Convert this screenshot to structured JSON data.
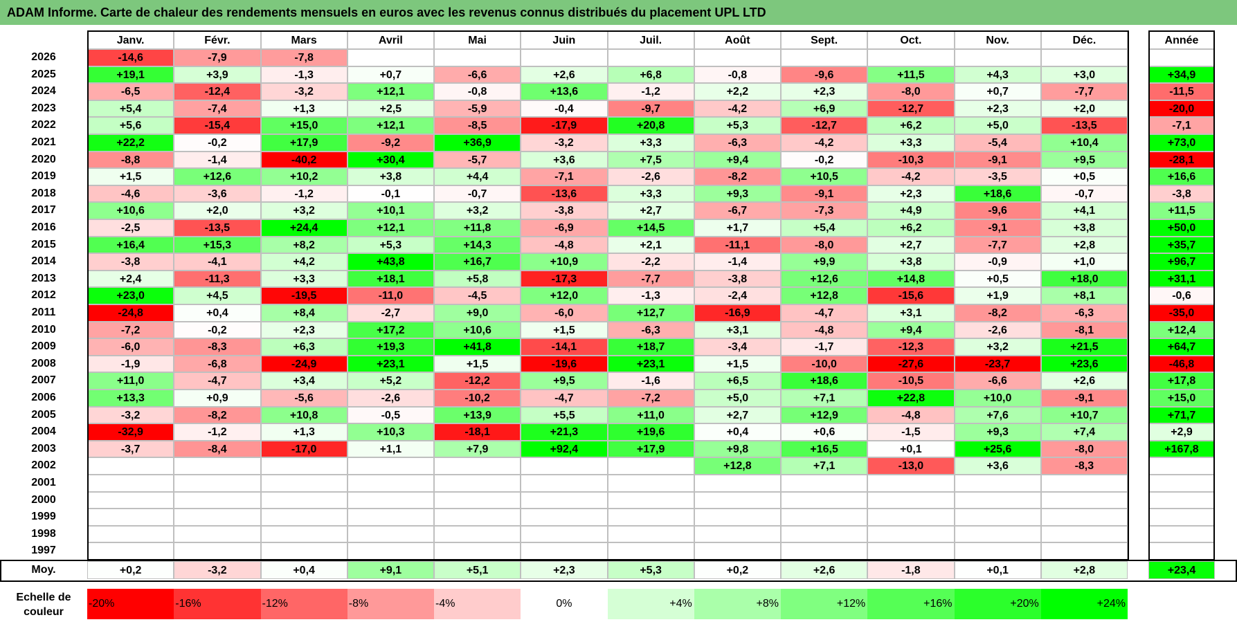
{
  "title": "ADAM Informe. Carte de chaleur des rendements mensuels en euros avec les revenus connus distribués du placement UPL LTD",
  "chart_data": {
    "type": "heatmap",
    "title": "ADAM Informe. Carte de chaleur des rendements mensuels en euros avec les revenus connus distribués du placement UPL LTD",
    "months": [
      "Janv.",
      "Févr.",
      "Mars",
      "Avril",
      "Mai",
      "Juin",
      "Juil.",
      "Août",
      "Sept.",
      "Oct.",
      "Nov.",
      "Déc."
    ],
    "year_header": "Année",
    "rows": [
      {
        "year": "2026",
        "values": [
          "-14,6",
          "-7,9",
          "-7,8",
          "",
          "",
          "",
          "",
          "",
          "",
          "",
          "",
          ""
        ],
        "annual": ""
      },
      {
        "year": "2025",
        "values": [
          "+19,1",
          "+3,9",
          "-1,3",
          "+0,7",
          "-6,6",
          "+2,6",
          "+6,8",
          "-0,8",
          "-9,6",
          "+11,5",
          "+4,3",
          "+3,0"
        ],
        "annual": "+34,9"
      },
      {
        "year": "2024",
        "values": [
          "-6,5",
          "-12,4",
          "-3,2",
          "+12,1",
          "-0,8",
          "+13,6",
          "-1,2",
          "+2,2",
          "+2,3",
          "-8,0",
          "+0,7",
          "-7,7"
        ],
        "annual": "-11,5"
      },
      {
        "year": "2023",
        "values": [
          "+5,4",
          "-7,4",
          "+1,3",
          "+2,5",
          "-5,9",
          "-0,4",
          "-9,7",
          "-4,2",
          "+6,9",
          "-12,7",
          "+2,3",
          "+2,0"
        ],
        "annual": "-20,0"
      },
      {
        "year": "2022",
        "values": [
          "+5,6",
          "-15,4",
          "+15,0",
          "+12,1",
          "-8,5",
          "-17,9",
          "+20,8",
          "+5,3",
          "-12,7",
          "+6,2",
          "+5,0",
          "-13,5"
        ],
        "annual": "-7,1"
      },
      {
        "year": "2021",
        "values": [
          "+22,2",
          "-0,2",
          "+17,9",
          "-9,2",
          "+36,9",
          "-3,2",
          "+3,3",
          "-6,3",
          "-4,2",
          "+3,3",
          "-5,4",
          "+10,4"
        ],
        "annual": "+73,0"
      },
      {
        "year": "2020",
        "values": [
          "-8,8",
          "-1,4",
          "-40,2",
          "+30,4",
          "-5,7",
          "+3,6",
          "+7,5",
          "+9,4",
          "-0,2",
          "-10,3",
          "-9,1",
          "+9,5"
        ],
        "annual": "-28,1"
      },
      {
        "year": "2019",
        "values": [
          "+1,5",
          "+12,6",
          "+10,2",
          "+3,8",
          "+4,4",
          "-7,1",
          "-2,6",
          "-8,2",
          "+10,5",
          "-4,2",
          "-3,5",
          "+0,5"
        ],
        "annual": "+16,6"
      },
      {
        "year": "2018",
        "values": [
          "-4,6",
          "-3,6",
          "-1,2",
          "-0,1",
          "-0,7",
          "-13,6",
          "+3,3",
          "+9,3",
          "-9,1",
          "+2,3",
          "+18,6",
          "-0,7"
        ],
        "annual": "-3,8"
      },
      {
        "year": "2017",
        "values": [
          "+10,6",
          "+2,0",
          "+3,2",
          "+10,1",
          "+3,2",
          "-3,8",
          "+2,7",
          "-6,7",
          "-7,3",
          "+4,9",
          "-9,6",
          "+4,1"
        ],
        "annual": "+11,5"
      },
      {
        "year": "2016",
        "values": [
          "-2,5",
          "-13,5",
          "+24,4",
          "+12,1",
          "+11,8",
          "-6,9",
          "+14,5",
          "+1,7",
          "+5,4",
          "+6,2",
          "-9,1",
          "+3,8"
        ],
        "annual": "+50,0"
      },
      {
        "year": "2015",
        "values": [
          "+16,4",
          "+15,3",
          "+8,2",
          "+5,3",
          "+14,3",
          "-4,8",
          "+2,1",
          "-11,1",
          "-8,0",
          "+2,7",
          "-7,7",
          "+2,8"
        ],
        "annual": "+35,7"
      },
      {
        "year": "2014",
        "values": [
          "-3,8",
          "-4,1",
          "+4,2",
          "+43,8",
          "+16,7",
          "+10,9",
          "-2,2",
          "-1,4",
          "+9,9",
          "+3,8",
          "-0,9",
          "+1,0"
        ],
        "annual": "+96,7"
      },
      {
        "year": "2013",
        "values": [
          "+2,4",
          "-11,3",
          "+3,3",
          "+18,1",
          "+5,8",
          "-17,3",
          "-7,7",
          "-3,8",
          "+12,6",
          "+14,8",
          "+0,5",
          "+18,0"
        ],
        "annual": "+31,1"
      },
      {
        "year": "2012",
        "values": [
          "+23,0",
          "+4,5",
          "-19,5",
          "-11,0",
          "-4,5",
          "+12,0",
          "-1,3",
          "-2,4",
          "+12,8",
          "-15,6",
          "+1,9",
          "+8,1"
        ],
        "annual": "-0,6"
      },
      {
        "year": "2011",
        "values": [
          "-24,8",
          "+0,4",
          "+8,4",
          "-2,7",
          "+9,0",
          "-6,0",
          "+12,7",
          "-16,9",
          "-4,7",
          "+3,1",
          "-8,2",
          "-6,3"
        ],
        "annual": "-35,0"
      },
      {
        "year": "2010",
        "values": [
          "-7,2",
          "-0,2",
          "+2,3",
          "+17,2",
          "+10,6",
          "+1,5",
          "-6,3",
          "+3,1",
          "-4,8",
          "+9,4",
          "-2,6",
          "-8,1"
        ],
        "annual": "+12,4"
      },
      {
        "year": "2009",
        "values": [
          "-6,0",
          "-8,3",
          "+6,3",
          "+19,3",
          "+41,8",
          "-14,1",
          "+18,7",
          "-3,4",
          "-1,7",
          "-12,3",
          "+3,2",
          "+21,5"
        ],
        "annual": "+64,7"
      },
      {
        "year": "2008",
        "values": [
          "-1,9",
          "-6,8",
          "-24,9",
          "+23,1",
          "+1,5",
          "-19,6",
          "+23,1",
          "+1,5",
          "-10,0",
          "-27,6",
          "-23,7",
          "+23,6"
        ],
        "annual": "-46,8"
      },
      {
        "year": "2007",
        "values": [
          "+11,0",
          "-4,7",
          "+3,4",
          "+5,2",
          "-12,2",
          "+9,5",
          "-1,6",
          "+6,5",
          "+18,6",
          "-10,5",
          "-6,6",
          "+2,6"
        ],
        "annual": "+17,8"
      },
      {
        "year": "2006",
        "values": [
          "+13,3",
          "+0,9",
          "-5,6",
          "-2,6",
          "-10,2",
          "-4,7",
          "-7,2",
          "+5,0",
          "+7,1",
          "+22,8",
          "+10,0",
          "-9,1"
        ],
        "annual": "+15,0"
      },
      {
        "year": "2005",
        "values": [
          "-3,2",
          "-8,2",
          "+10,8",
          "-0,5",
          "+13,9",
          "+5,5",
          "+11,0",
          "+2,7",
          "+12,9",
          "-4,8",
          "+7,6",
          "+10,7"
        ],
        "annual": "+71,7"
      },
      {
        "year": "2004",
        "values": [
          "-32,9",
          "-1,2",
          "+1,3",
          "+10,3",
          "-18,1",
          "+21,3",
          "+19,6",
          "+0,4",
          "+0,6",
          "-1,5",
          "+9,3",
          "+7,4"
        ],
        "annual": "+2,9"
      },
      {
        "year": "2003",
        "values": [
          "-3,7",
          "-8,4",
          "-17,0",
          "+1,1",
          "+7,9",
          "+92,4",
          "+17,9",
          "+9,8",
          "+16,5",
          "+0,1",
          "+25,6",
          "-8,0"
        ],
        "annual": "+167,8"
      },
      {
        "year": "2002",
        "values": [
          "",
          "",
          "",
          "",
          "",
          "",
          "",
          "+12,8",
          "+7,1",
          "-13,0",
          "+3,6",
          "-8,3"
        ],
        "annual": ""
      },
      {
        "year": "2001",
        "values": [
          "",
          "",
          "",
          "",
          "",
          "",
          "",
          "",
          "",
          "",
          "",
          ""
        ],
        "annual": ""
      },
      {
        "year": "2000",
        "values": [
          "",
          "",
          "",
          "",
          "",
          "",
          "",
          "",
          "",
          "",
          "",
          ""
        ],
        "annual": ""
      },
      {
        "year": "1999",
        "values": [
          "",
          "",
          "",
          "",
          "",
          "",
          "",
          "",
          "",
          "",
          "",
          ""
        ],
        "annual": ""
      },
      {
        "year": "1998",
        "values": [
          "",
          "",
          "",
          "",
          "",
          "",
          "",
          "",
          "",
          "",
          "",
          ""
        ],
        "annual": ""
      },
      {
        "year": "1997",
        "values": [
          "",
          "",
          "",
          "",
          "",
          "",
          "",
          "",
          "",
          "",
          "",
          ""
        ],
        "annual": ""
      }
    ],
    "average": {
      "label": "Moy.",
      "values": [
        "+0,2",
        "-3,2",
        "+0,4",
        "+9,1",
        "+5,1",
        "+2,3",
        "+5,3",
        "+0,2",
        "+2,6",
        "-1,8",
        "+0,1",
        "+2,8"
      ],
      "annual": "+23,4"
    },
    "scale": {
      "label_line1": "Echelle de",
      "label_line2": "couleur",
      "steps": [
        {
          "label": "-20%",
          "value": -20
        },
        {
          "label": "-16%",
          "value": -16
        },
        {
          "label": "-12%",
          "value": -12
        },
        {
          "label": "-8%",
          "value": -8
        },
        {
          "label": "-4%",
          "value": -4
        },
        {
          "label": "0%",
          "value": 0
        },
        {
          "label": "+4%",
          "value": 4
        },
        {
          "label": "+8%",
          "value": 8
        },
        {
          "label": "+12%",
          "value": 12
        },
        {
          "label": "+16%",
          "value": 16
        },
        {
          "label": "+20%",
          "value": 20
        },
        {
          "label": "+24%",
          "value": 24
        }
      ]
    },
    "colors": {
      "negative": "#ff0000",
      "neutral": "#ffffff",
      "positive": "#00ff00",
      "title_bg": "#7dc77d",
      "grid": "#bfbfbf"
    },
    "color_range": [
      -20,
      24
    ]
  }
}
